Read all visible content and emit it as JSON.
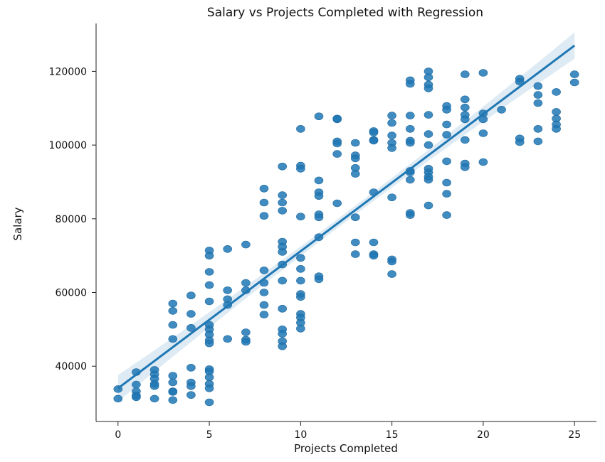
{
  "chart_data": {
    "type": "scatter",
    "title": "Salary vs Projects Completed with Regression",
    "xlabel": "Projects Completed",
    "ylabel": "Salary",
    "xlim": [
      -1.2,
      26.2
    ],
    "ylim": [
      25000,
      133000
    ],
    "xticks": [
      0,
      5,
      10,
      15,
      20,
      25
    ],
    "yticks": [
      40000,
      60000,
      80000,
      100000,
      120000
    ],
    "x_tick_labels": [
      "0",
      "5",
      "10",
      "15",
      "20",
      "25"
    ],
    "y_tick_labels": [
      "40000",
      "60000",
      "80000",
      "100000",
      "120000"
    ],
    "grid": false,
    "colors": {
      "points": "#1f77b4",
      "line": "#1f77b4"
    },
    "regression": {
      "x": [
        0,
        25
      ],
      "y": [
        34000,
        127000
      ],
      "ci_halfwidth_at_ends": 3600,
      "ci_halfwidth_at_center": 1200
    },
    "points": [
      [
        0,
        33800
      ],
      [
        0,
        31200
      ],
      [
        1,
        38400
      ],
      [
        1,
        35000
      ],
      [
        1,
        33200
      ],
      [
        1,
        32000
      ],
      [
        1,
        31600
      ],
      [
        2,
        39000
      ],
      [
        2,
        37800
      ],
      [
        2,
        36600
      ],
      [
        2,
        35200
      ],
      [
        2,
        34600
      ],
      [
        2,
        31200
      ],
      [
        3,
        57000
      ],
      [
        3,
        55000
      ],
      [
        3,
        51200
      ],
      [
        3,
        47400
      ],
      [
        3,
        37400
      ],
      [
        3,
        35600
      ],
      [
        3,
        33200
      ],
      [
        3,
        33000
      ],
      [
        3,
        30800
      ],
      [
        4,
        59200
      ],
      [
        4,
        54200
      ],
      [
        4,
        50400
      ],
      [
        4,
        39600
      ],
      [
        4,
        35600
      ],
      [
        4,
        34600
      ],
      [
        4,
        32200
      ],
      [
        5,
        71400
      ],
      [
        5,
        70000
      ],
      [
        5,
        65600
      ],
      [
        5,
        62000
      ],
      [
        5,
        57600
      ],
      [
        5,
        51200
      ],
      [
        5,
        50000
      ],
      [
        5,
        48600
      ],
      [
        5,
        47000
      ],
      [
        5,
        46200
      ],
      [
        5,
        39200
      ],
      [
        5,
        38600
      ],
      [
        5,
        37000
      ],
      [
        5,
        35200
      ],
      [
        5,
        34000
      ],
      [
        5,
        30200
      ],
      [
        6,
        71800
      ],
      [
        6,
        60600
      ],
      [
        6,
        58200
      ],
      [
        6,
        56600
      ],
      [
        6,
        47400
      ],
      [
        7,
        73000
      ],
      [
        7,
        62600
      ],
      [
        7,
        60600
      ],
      [
        7,
        49200
      ],
      [
        7,
        47200
      ],
      [
        7,
        46600
      ],
      [
        8,
        88200
      ],
      [
        8,
        84400
      ],
      [
        8,
        80800
      ],
      [
        8,
        66000
      ],
      [
        8,
        62600
      ],
      [
        8,
        60000
      ],
      [
        8,
        56600
      ],
      [
        8,
        54000
      ],
      [
        9,
        94200
      ],
      [
        9,
        86400
      ],
      [
        9,
        84400
      ],
      [
        9,
        82200
      ],
      [
        9,
        73800
      ],
      [
        9,
        72400
      ],
      [
        9,
        71000
      ],
      [
        9,
        67600
      ],
      [
        9,
        63200
      ],
      [
        9,
        55600
      ],
      [
        9,
        50000
      ],
      [
        9,
        48800
      ],
      [
        9,
        46800
      ],
      [
        9,
        45400
      ],
      [
        10,
        104400
      ],
      [
        10,
        94400
      ],
      [
        10,
        93600
      ],
      [
        10,
        80600
      ],
      [
        10,
        69400
      ],
      [
        10,
        66400
      ],
      [
        10,
        63200
      ],
      [
        10,
        59600
      ],
      [
        10,
        58800
      ],
      [
        10,
        54200
      ],
      [
        10,
        53200
      ],
      [
        10,
        51800
      ],
      [
        10,
        50200
      ],
      [
        11,
        107800
      ],
      [
        11,
        90400
      ],
      [
        11,
        87200
      ],
      [
        11,
        86200
      ],
      [
        11,
        81200
      ],
      [
        11,
        80400
      ],
      [
        11,
        75000
      ],
      [
        11,
        64400
      ],
      [
        11,
        63600
      ],
      [
        12,
        107200
      ],
      [
        12,
        107000
      ],
      [
        12,
        101000
      ],
      [
        12,
        100400
      ],
      [
        12,
        97600
      ],
      [
        12,
        84200
      ],
      [
        13,
        100600
      ],
      [
        13,
        97200
      ],
      [
        13,
        96400
      ],
      [
        13,
        93800
      ],
      [
        13,
        92200
      ],
      [
        13,
        80400
      ],
      [
        13,
        73600
      ],
      [
        13,
        70400
      ],
      [
        14,
        103800
      ],
      [
        14,
        103400
      ],
      [
        14,
        101400
      ],
      [
        14,
        101200
      ],
      [
        14,
        87200
      ],
      [
        14,
        73600
      ],
      [
        14,
        70400
      ],
      [
        14,
        70000
      ],
      [
        15,
        108000
      ],
      [
        15,
        106000
      ],
      [
        15,
        102600
      ],
      [
        15,
        100600
      ],
      [
        15,
        99200
      ],
      [
        15,
        85800
      ],
      [
        15,
        69000
      ],
      [
        15,
        68400
      ],
      [
        15,
        65000
      ],
      [
        16,
        117600
      ],
      [
        16,
        116600
      ],
      [
        16,
        108000
      ],
      [
        16,
        104400
      ],
      [
        16,
        101200
      ],
      [
        16,
        100600
      ],
      [
        16,
        93000
      ],
      [
        16,
        92600
      ],
      [
        16,
        90600
      ],
      [
        16,
        81600
      ],
      [
        16,
        81000
      ],
      [
        17,
        120000
      ],
      [
        17,
        118400
      ],
      [
        17,
        116400
      ],
      [
        17,
        115400
      ],
      [
        17,
        108200
      ],
      [
        17,
        103000
      ],
      [
        17,
        100000
      ],
      [
        17,
        93600
      ],
      [
        17,
        92600
      ],
      [
        17,
        91400
      ],
      [
        17,
        90600
      ],
      [
        17,
        83600
      ],
      [
        18,
        110600
      ],
      [
        18,
        109600
      ],
      [
        18,
        105600
      ],
      [
        18,
        102800
      ],
      [
        18,
        95600
      ],
      [
        18,
        89800
      ],
      [
        18,
        86800
      ],
      [
        18,
        81000
      ],
      [
        19,
        119200
      ],
      [
        19,
        112400
      ],
      [
        19,
        110200
      ],
      [
        19,
        108200
      ],
      [
        19,
        107000
      ],
      [
        19,
        101400
      ],
      [
        19,
        95000
      ],
      [
        19,
        94000
      ],
      [
        20,
        119600
      ],
      [
        20,
        108600
      ],
      [
        20,
        107000
      ],
      [
        20,
        103200
      ],
      [
        20,
        95400
      ],
      [
        21,
        109600
      ],
      [
        22,
        118000
      ],
      [
        22,
        117200
      ],
      [
        22,
        101800
      ],
      [
        22,
        100800
      ],
      [
        23,
        116000
      ],
      [
        23,
        113600
      ],
      [
        23,
        111400
      ],
      [
        23,
        104400
      ],
      [
        23,
        101000
      ],
      [
        24,
        114400
      ],
      [
        24,
        109000
      ],
      [
        24,
        107200
      ],
      [
        24,
        105600
      ],
      [
        24,
        104400
      ],
      [
        25,
        119200
      ],
      [
        25,
        117000
      ]
    ]
  }
}
